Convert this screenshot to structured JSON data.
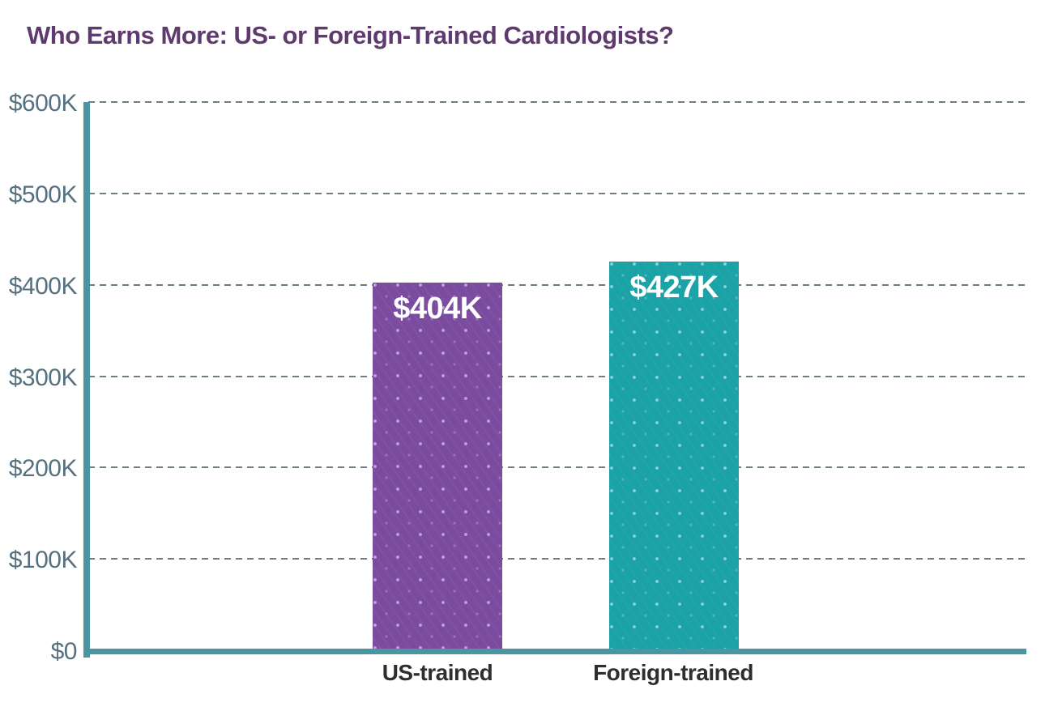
{
  "title": "Who Earns More: US- or Foreign-Trained Cardiologists?",
  "colors": {
    "title_text": "#5e3a6e",
    "axis_line": "#4a95a2",
    "gridline": "#6e7e88",
    "y_tick_label": "#55707f",
    "x_tick_label": "#2e2e2e",
    "bar_value_label": "#ffffff",
    "us_trained_bar": "#7b4ba0",
    "foreign_trained_bar": "#1aa2a6",
    "background": "#ffffff"
  },
  "chart_data": {
    "type": "bar",
    "title": "Who Earns More: US- or Foreign-Trained Cardiologists?",
    "categories": [
      "US-trained",
      "Foreign-trained"
    ],
    "values": [
      404,
      427
    ],
    "value_labels": [
      "$404K",
      "$427K"
    ],
    "bar_colors": [
      "#7b4ba0",
      "#1aa2a6"
    ],
    "xlabel": "",
    "ylabel": "",
    "units": "USD thousands (annual earnings)",
    "ylim": [
      0,
      600
    ],
    "ytick_step": 100,
    "ytick_labels": [
      "$0",
      "$100K",
      "$200K",
      "$300K",
      "$400K",
      "$500K",
      "$600K"
    ],
    "grid": "horizontal dashed",
    "legend": "none",
    "bar_pattern": "diagonal white dots"
  }
}
